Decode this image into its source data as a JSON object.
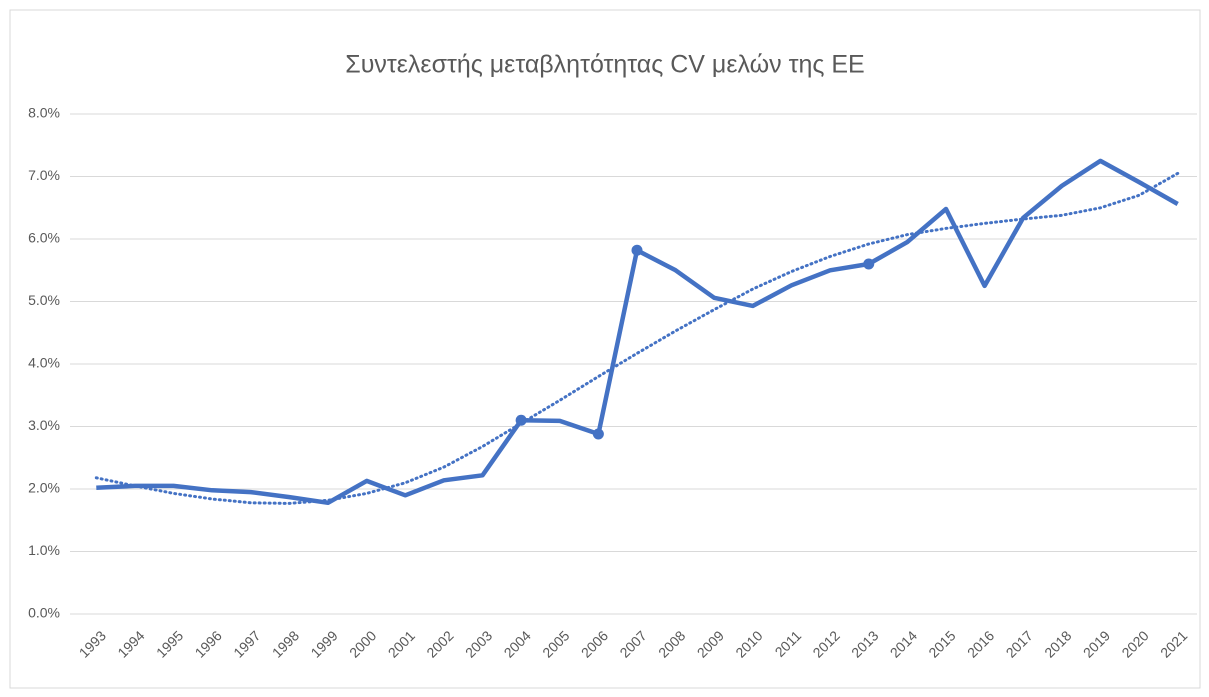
{
  "chart_data": {
    "type": "line",
    "title": "Συντελεστής μεταβλητότητας CV μελών της ΕΕ",
    "categories": [
      "1993",
      "1994",
      "1995",
      "1996",
      "1997",
      "1998",
      "1999",
      "2000",
      "2001",
      "2002",
      "2003",
      "2004",
      "2005",
      "2006",
      "2007",
      "2008",
      "2009",
      "2010",
      "2011",
      "2012",
      "2013",
      "2014",
      "2015",
      "2016",
      "2017",
      "2018",
      "2019",
      "2020",
      "2021"
    ],
    "series": [
      {
        "color": "#4472c4",
        "values": [
          2.02,
          2.05,
          2.05,
          1.98,
          1.95,
          1.87,
          1.78,
          2.13,
          1.9,
          2.14,
          2.22,
          3.1,
          3.09,
          2.88,
          5.82,
          5.5,
          5.06,
          4.93,
          5.26,
          5.5,
          5.6,
          5.95,
          6.48,
          5.25,
          6.34,
          6.85,
          7.25,
          6.91,
          6.56
        ]
      }
    ],
    "trendline": {
      "color": "#4472c4",
      "values": [
        2.18,
        2.05,
        1.93,
        1.84,
        1.78,
        1.77,
        1.82,
        1.93,
        2.1,
        2.35,
        2.68,
        3.05,
        3.42,
        3.8,
        4.17,
        4.53,
        4.87,
        5.2,
        5.48,
        5.72,
        5.92,
        6.07,
        6.17,
        6.25,
        6.32,
        6.38,
        6.5,
        6.7,
        7.05
      ]
    },
    "highlight": [
      11,
      13,
      14,
      20
    ],
    "ylim": [
      0,
      8
    ],
    "yticks": [
      {
        "value": 0,
        "label": "0.0%"
      },
      {
        "value": 1,
        "label": "1.0%"
      },
      {
        "value": 2,
        "label": "2.0%"
      },
      {
        "value": 3,
        "label": "3.0%"
      },
      {
        "value": 4,
        "label": "4.0%"
      },
      {
        "value": 5,
        "label": "5.0%"
      },
      {
        "value": 6,
        "label": "6.0%"
      },
      {
        "value": 7,
        "label": "7.0%"
      },
      {
        "value": 8,
        "label": "8.0%"
      }
    ],
    "grid": true
  }
}
